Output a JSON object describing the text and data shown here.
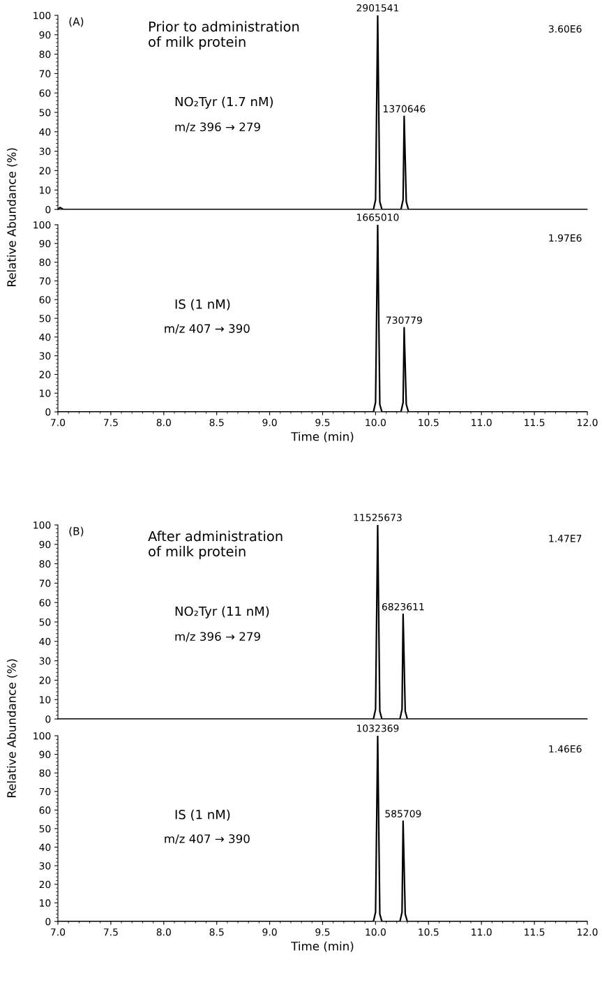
{
  "chart_data": [
    {
      "type": "line",
      "xlim": [
        7.0,
        12.0
      ],
      "ylim": [
        0,
        100
      ],
      "yticks": [
        0,
        10,
        20,
        30,
        40,
        50,
        60,
        70,
        80,
        90,
        100
      ],
      "tick_labels": "y",
      "grid": false,
      "legend": false,
      "marker": "none",
      "line_style": "solid",
      "series": [
        {
          "color": "#000000",
          "x": [
            7.0,
            7.02,
            7.05,
            8.0,
            9.0,
            9.98,
            10.0,
            10.02,
            10.04,
            10.06,
            10.1,
            10.2,
            10.24,
            10.26,
            10.27,
            10.29,
            10.31,
            11.0,
            12.0
          ],
          "values": [
            0,
            1,
            0,
            0,
            0,
            0,
            5,
            100,
            4,
            0,
            0,
            0,
            0,
            5,
            48,
            4,
            0,
            0,
            0
          ]
        }
      ],
      "annotations": [
        "(A)",
        "Prior to administration\nof milk protein",
        "NO₂Tyr (1.7 nM)",
        "m/z 396 → 279",
        "3.60E6",
        {
          "text": "2901541",
          "x": 10.02,
          "y": 100
        },
        {
          "text": "1370646",
          "x": 10.27,
          "y": 48
        }
      ]
    },
    {
      "type": "line",
      "xlim": [
        7.0,
        12.0
      ],
      "ylim": [
        0,
        100
      ],
      "yticks": [
        0,
        10,
        20,
        30,
        40,
        50,
        60,
        70,
        80,
        90,
        100
      ],
      "xticks": [
        {
          "value": 7,
          "label": "7.0"
        },
        7.5,
        {
          "value": 8,
          "label": "8.0"
        },
        8.5,
        {
          "value": 9,
          "label": "9.0"
        },
        9.5,
        {
          "value": 10,
          "label": "10.0"
        },
        10.5,
        {
          "value": 11,
          "label": "11.0"
        },
        11.5,
        {
          "value": 12,
          "label": "12.0"
        }
      ],
      "grid": false,
      "legend": false,
      "marker": "none",
      "line_style": "solid",
      "xlabel": "Time (min)",
      "ylabel": "Relative Abundance (%)",
      "series": [
        {
          "color": "#000000",
          "x": [
            7.0,
            8.0,
            9.0,
            9.98,
            10.0,
            10.02,
            10.04,
            10.06,
            10.1,
            10.2,
            10.24,
            10.26,
            10.27,
            10.29,
            10.31,
            11.0,
            12.0
          ],
          "values": [
            0,
            0,
            0,
            0,
            5,
            100,
            4,
            0,
            0,
            0,
            0,
            5,
            45,
            4,
            0,
            0,
            0
          ]
        }
      ],
      "annotations": [
        "IS (1 nM)",
        "m/z 407 → 390",
        "1.97E6",
        {
          "text": "1665010",
          "x": 10.02,
          "y": 100
        },
        {
          "text": "730779",
          "x": 10.27,
          "y": 45
        }
      ]
    },
    {
      "type": "line",
      "xlim": [
        7.0,
        12.0
      ],
      "ylim": [
        0,
        100
      ],
      "yticks": [
        0,
        10,
        20,
        30,
        40,
        50,
        60,
        70,
        80,
        90,
        100
      ],
      "tick_labels": "y",
      "grid": false,
      "legend": false,
      "marker": "none",
      "line_style": "solid",
      "series": [
        {
          "color": "#000000",
          "x": [
            7.0,
            8.0,
            9.0,
            9.98,
            10.0,
            10.02,
            10.04,
            10.06,
            10.1,
            10.2,
            10.23,
            10.25,
            10.26,
            10.28,
            10.3,
            11.0,
            12.0
          ],
          "values": [
            0,
            0,
            0,
            0,
            5,
            100,
            4,
            0,
            0,
            0,
            0,
            5,
            54,
            4,
            0,
            0,
            0
          ]
        }
      ],
      "annotations": [
        "(B)",
        "After administration\nof milk protein",
        "NO₂Tyr (11 nM)",
        "m/z 396 → 279",
        "1.47E7",
        {
          "text": "11525673",
          "x": 10.02,
          "y": 100
        },
        {
          "text": "6823611",
          "x": 10.26,
          "y": 54
        }
      ]
    },
    {
      "type": "line",
      "xlim": [
        7.0,
        12.0
      ],
      "ylim": [
        0,
        100
      ],
      "yticks": [
        0,
        10,
        20,
        30,
        40,
        50,
        60,
        70,
        80,
        90,
        100
      ],
      "xticks": [
        {
          "value": 7,
          "label": "7.0"
        },
        7.5,
        {
          "value": 8,
          "label": "8.0"
        },
        8.5,
        {
          "value": 9,
          "label": "9.0"
        },
        9.5,
        {
          "value": 10,
          "label": "10.0"
        },
        10.5,
        {
          "value": 11,
          "label": "11.0"
        },
        11.5,
        {
          "value": 12,
          "label": "12.0"
        }
      ],
      "grid": false,
      "legend": false,
      "marker": "none",
      "line_style": "solid",
      "xlabel": "Time (min)",
      "ylabel": "Relative Abundance (%)",
      "series": [
        {
          "color": "#000000",
          "x": [
            7.0,
            8.0,
            9.0,
            9.98,
            10.0,
            10.02,
            10.04,
            10.06,
            10.1,
            10.2,
            10.23,
            10.25,
            10.26,
            10.28,
            10.3,
            11.0,
            12.0
          ],
          "values": [
            0,
            0,
            0,
            0,
            5,
            100,
            4,
            0,
            0,
            0,
            0,
            5,
            54,
            4,
            0,
            0,
            0
          ]
        }
      ],
      "annotations": [
        "IS (1 nM)",
        "m/z 407 → 390",
        "1.46E6",
        {
          "text": "1032369",
          "x": 10.02,
          "y": 100
        },
        {
          "text": "585709",
          "x": 10.26,
          "y": 54
        }
      ]
    }
  ]
}
